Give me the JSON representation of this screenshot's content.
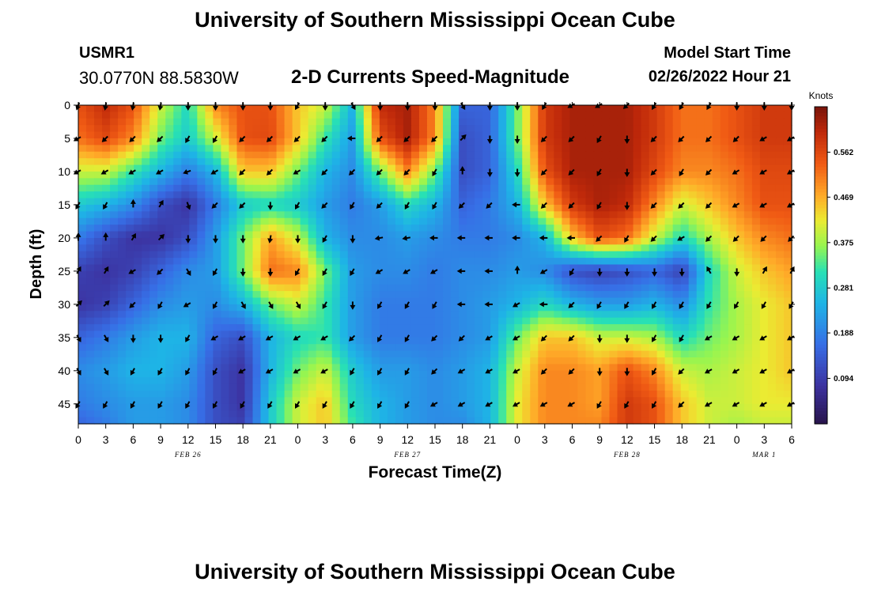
{
  "header": {
    "title": "University of Southern Mississippi Ocean Cube",
    "station": "USMR1",
    "coords": "30.0770N  88.5830W",
    "subtitle": "2-D Currents Speed-Magnitude",
    "model_start_label": "Model Start Time",
    "model_start_value": "02/26/2022 Hour 21"
  },
  "footer": {
    "title": "University of Southern Mississippi Ocean Cube"
  },
  "chart_data": {
    "type": "heatmap",
    "title": "2-D Currents Speed-Magnitude",
    "xlabel": "Forecast Time(Z)",
    "ylabel": "Depth (ft)",
    "x_ticks": [
      "0",
      "3",
      "6",
      "9",
      "12",
      "15",
      "18",
      "21",
      "0",
      "3",
      "6",
      "9",
      "12",
      "15",
      "18",
      "21",
      "0",
      "3",
      "6",
      "9",
      "12",
      "15",
      "18",
      "21",
      "0",
      "3",
      "6"
    ],
    "x_range_hours": [
      0,
      78
    ],
    "date_labels": [
      {
        "label": "FEB 26",
        "hour": 12
      },
      {
        "label": "FEB 27",
        "hour": 36
      },
      {
        "label": "FEB 28",
        "hour": 60
      },
      {
        "label": "MAR 1",
        "hour": 75
      }
    ],
    "y_ticks": [
      0,
      5,
      10,
      15,
      20,
      25,
      30,
      35,
      40,
      45
    ],
    "ylim": [
      0,
      48
    ],
    "colorbar": {
      "unit": "Knots",
      "range": [
        0,
        0.656
      ],
      "ticks": [
        0.094,
        0.188,
        0.281,
        0.375,
        0.469,
        0.562
      ]
    },
    "depths_ft": [
      0,
      5,
      10,
      15,
      20,
      25,
      30,
      35,
      40,
      45,
      48
    ],
    "speed_hours": [
      0,
      3,
      6,
      9,
      12,
      15,
      18,
      21,
      24,
      27,
      30,
      33,
      36,
      39,
      42,
      45,
      48,
      51,
      54,
      57,
      60,
      63,
      66,
      69,
      72,
      75,
      78
    ],
    "speed_knots": [
      [
        0.55,
        0.6,
        0.55,
        0.4,
        0.3,
        0.5,
        0.55,
        0.55,
        0.45,
        0.4,
        0.25,
        0.6,
        0.62,
        0.5,
        0.15,
        0.15,
        0.35,
        0.58,
        0.62,
        0.62,
        0.62,
        0.58,
        0.52,
        0.52,
        0.55,
        0.58,
        0.58
      ],
      [
        0.52,
        0.56,
        0.5,
        0.35,
        0.28,
        0.4,
        0.55,
        0.56,
        0.45,
        0.32,
        0.22,
        0.55,
        0.62,
        0.5,
        0.12,
        0.15,
        0.35,
        0.58,
        0.62,
        0.62,
        0.62,
        0.58,
        0.52,
        0.52,
        0.55,
        0.58,
        0.58
      ],
      [
        0.4,
        0.4,
        0.32,
        0.25,
        0.18,
        0.25,
        0.45,
        0.45,
        0.35,
        0.25,
        0.2,
        0.35,
        0.5,
        0.35,
        0.12,
        0.15,
        0.3,
        0.55,
        0.62,
        0.62,
        0.62,
        0.56,
        0.5,
        0.5,
        0.52,
        0.56,
        0.56
      ],
      [
        0.28,
        0.25,
        0.2,
        0.12,
        0.08,
        0.18,
        0.28,
        0.3,
        0.28,
        0.22,
        0.18,
        0.22,
        0.3,
        0.25,
        0.15,
        0.18,
        0.25,
        0.45,
        0.58,
        0.62,
        0.6,
        0.5,
        0.4,
        0.45,
        0.5,
        0.55,
        0.55
      ],
      [
        0.18,
        0.12,
        0.08,
        0.08,
        0.12,
        0.22,
        0.35,
        0.48,
        0.4,
        0.25,
        0.2,
        0.2,
        0.22,
        0.2,
        0.18,
        0.18,
        0.2,
        0.25,
        0.45,
        0.55,
        0.52,
        0.4,
        0.3,
        0.38,
        0.45,
        0.5,
        0.52
      ],
      [
        0.1,
        0.08,
        0.1,
        0.15,
        0.2,
        0.22,
        0.35,
        0.52,
        0.5,
        0.35,
        0.22,
        0.2,
        0.2,
        0.18,
        0.2,
        0.2,
        0.22,
        0.2,
        0.12,
        0.1,
        0.12,
        0.15,
        0.1,
        0.3,
        0.4,
        0.45,
        0.48
      ],
      [
        0.08,
        0.1,
        0.15,
        0.2,
        0.22,
        0.2,
        0.25,
        0.35,
        0.4,
        0.32,
        0.22,
        0.18,
        0.18,
        0.18,
        0.2,
        0.22,
        0.25,
        0.3,
        0.25,
        0.22,
        0.22,
        0.25,
        0.2,
        0.32,
        0.38,
        0.42,
        0.45
      ],
      [
        0.15,
        0.18,
        0.22,
        0.25,
        0.25,
        0.15,
        0.12,
        0.25,
        0.3,
        0.32,
        0.22,
        0.18,
        0.18,
        0.18,
        0.2,
        0.22,
        0.35,
        0.45,
        0.45,
        0.4,
        0.4,
        0.38,
        0.3,
        0.35,
        0.38,
        0.42,
        0.45
      ],
      [
        0.2,
        0.22,
        0.25,
        0.25,
        0.22,
        0.12,
        0.08,
        0.25,
        0.35,
        0.4,
        0.28,
        0.22,
        0.22,
        0.2,
        0.22,
        0.25,
        0.4,
        0.5,
        0.5,
        0.48,
        0.55,
        0.5,
        0.4,
        0.38,
        0.4,
        0.42,
        0.45
      ],
      [
        0.18,
        0.2,
        0.22,
        0.22,
        0.2,
        0.12,
        0.08,
        0.28,
        0.4,
        0.45,
        0.3,
        0.25,
        0.22,
        0.2,
        0.22,
        0.25,
        0.42,
        0.5,
        0.5,
        0.48,
        0.58,
        0.55,
        0.45,
        0.4,
        0.4,
        0.42,
        0.42
      ],
      [
        0.15,
        0.18,
        0.22,
        0.22,
        0.2,
        0.12,
        0.1,
        0.28,
        0.4,
        0.45,
        0.32,
        0.25,
        0.22,
        0.2,
        0.2,
        0.25,
        0.42,
        0.5,
        0.5,
        0.5,
        0.58,
        0.55,
        0.45,
        0.4,
        0.38,
        0.4,
        0.4
      ]
    ],
    "arrows_deg": [
      [
        -110,
        -100,
        -100,
        -100,
        -90,
        -90,
        -90,
        -90,
        -120,
        -90,
        -60,
        -90,
        -90,
        -90,
        -60,
        -90,
        -90,
        -120,
        -150,
        -150,
        -135,
        -120,
        -120,
        -120,
        -90,
        -90,
        -90
      ],
      [
        -150,
        -135,
        -135,
        -135,
        -120,
        -120,
        -135,
        -135,
        -135,
        -135,
        -180,
        -135,
        -135,
        -135,
        45,
        -90,
        -90,
        -135,
        -135,
        -120,
        -90,
        -135,
        -135,
        -135,
        -135,
        -150,
        -150
      ],
      [
        -150,
        -150,
        -150,
        -150,
        -160,
        -150,
        -135,
        -135,
        -150,
        -135,
        -135,
        -135,
        -135,
        -120,
        90,
        -90,
        -90,
        -135,
        -135,
        -120,
        -90,
        -135,
        -120,
        -135,
        -150,
        -150,
        -150
      ],
      [
        -120,
        -120,
        90,
        60,
        -70,
        -135,
        -135,
        -90,
        -120,
        -135,
        -120,
        -135,
        -120,
        -120,
        -135,
        -135,
        -180,
        -135,
        -135,
        -120,
        -90,
        -135,
        -135,
        -135,
        -150,
        -150,
        -150
      ],
      [
        90,
        90,
        60,
        45,
        -90,
        -90,
        -90,
        -100,
        -90,
        -120,
        -90,
        -170,
        -170,
        -180,
        -180,
        -180,
        -180,
        -180,
        -180,
        -135,
        -120,
        -135,
        -150,
        -135,
        -135,
        -135,
        -135
      ],
      [
        60,
        60,
        -150,
        -135,
        -60,
        -120,
        -90,
        -90,
        -120,
        -120,
        -120,
        -150,
        -150,
        -150,
        -180,
        -180,
        90,
        -150,
        -120,
        -90,
        -90,
        -90,
        -90,
        120,
        -90,
        60,
        60
      ],
      [
        45,
        45,
        -135,
        -120,
        -150,
        -120,
        -60,
        -60,
        -60,
        -120,
        -90,
        -120,
        -120,
        -120,
        -180,
        -180,
        -150,
        -180,
        -135,
        -120,
        -120,
        -120,
        -120,
        -120,
        -120,
        -120,
        -120
      ],
      [
        -60,
        -60,
        -90,
        -90,
        -120,
        -150,
        -150,
        -150,
        -150,
        -150,
        -135,
        -120,
        -120,
        -135,
        -135,
        -150,
        -150,
        -135,
        -135,
        -90,
        -90,
        -120,
        -120,
        -150,
        -150,
        -150,
        -150
      ],
      [
        -60,
        -60,
        -120,
        -120,
        -120,
        -120,
        -150,
        -150,
        -150,
        -150,
        -120,
        -120,
        -120,
        -135,
        -150,
        -150,
        -150,
        -135,
        -135,
        -90,
        -90,
        -120,
        -135,
        -150,
        -150,
        -150,
        -150
      ],
      [
        -120,
        -120,
        -120,
        -120,
        -120,
        -120,
        -120,
        -120,
        -120,
        -120,
        -120,
        -120,
        -120,
        -150,
        -150,
        -150,
        -150,
        -150,
        -150,
        -120,
        -120,
        -120,
        -135,
        -150,
        -150,
        -150,
        -150
      ]
    ]
  }
}
